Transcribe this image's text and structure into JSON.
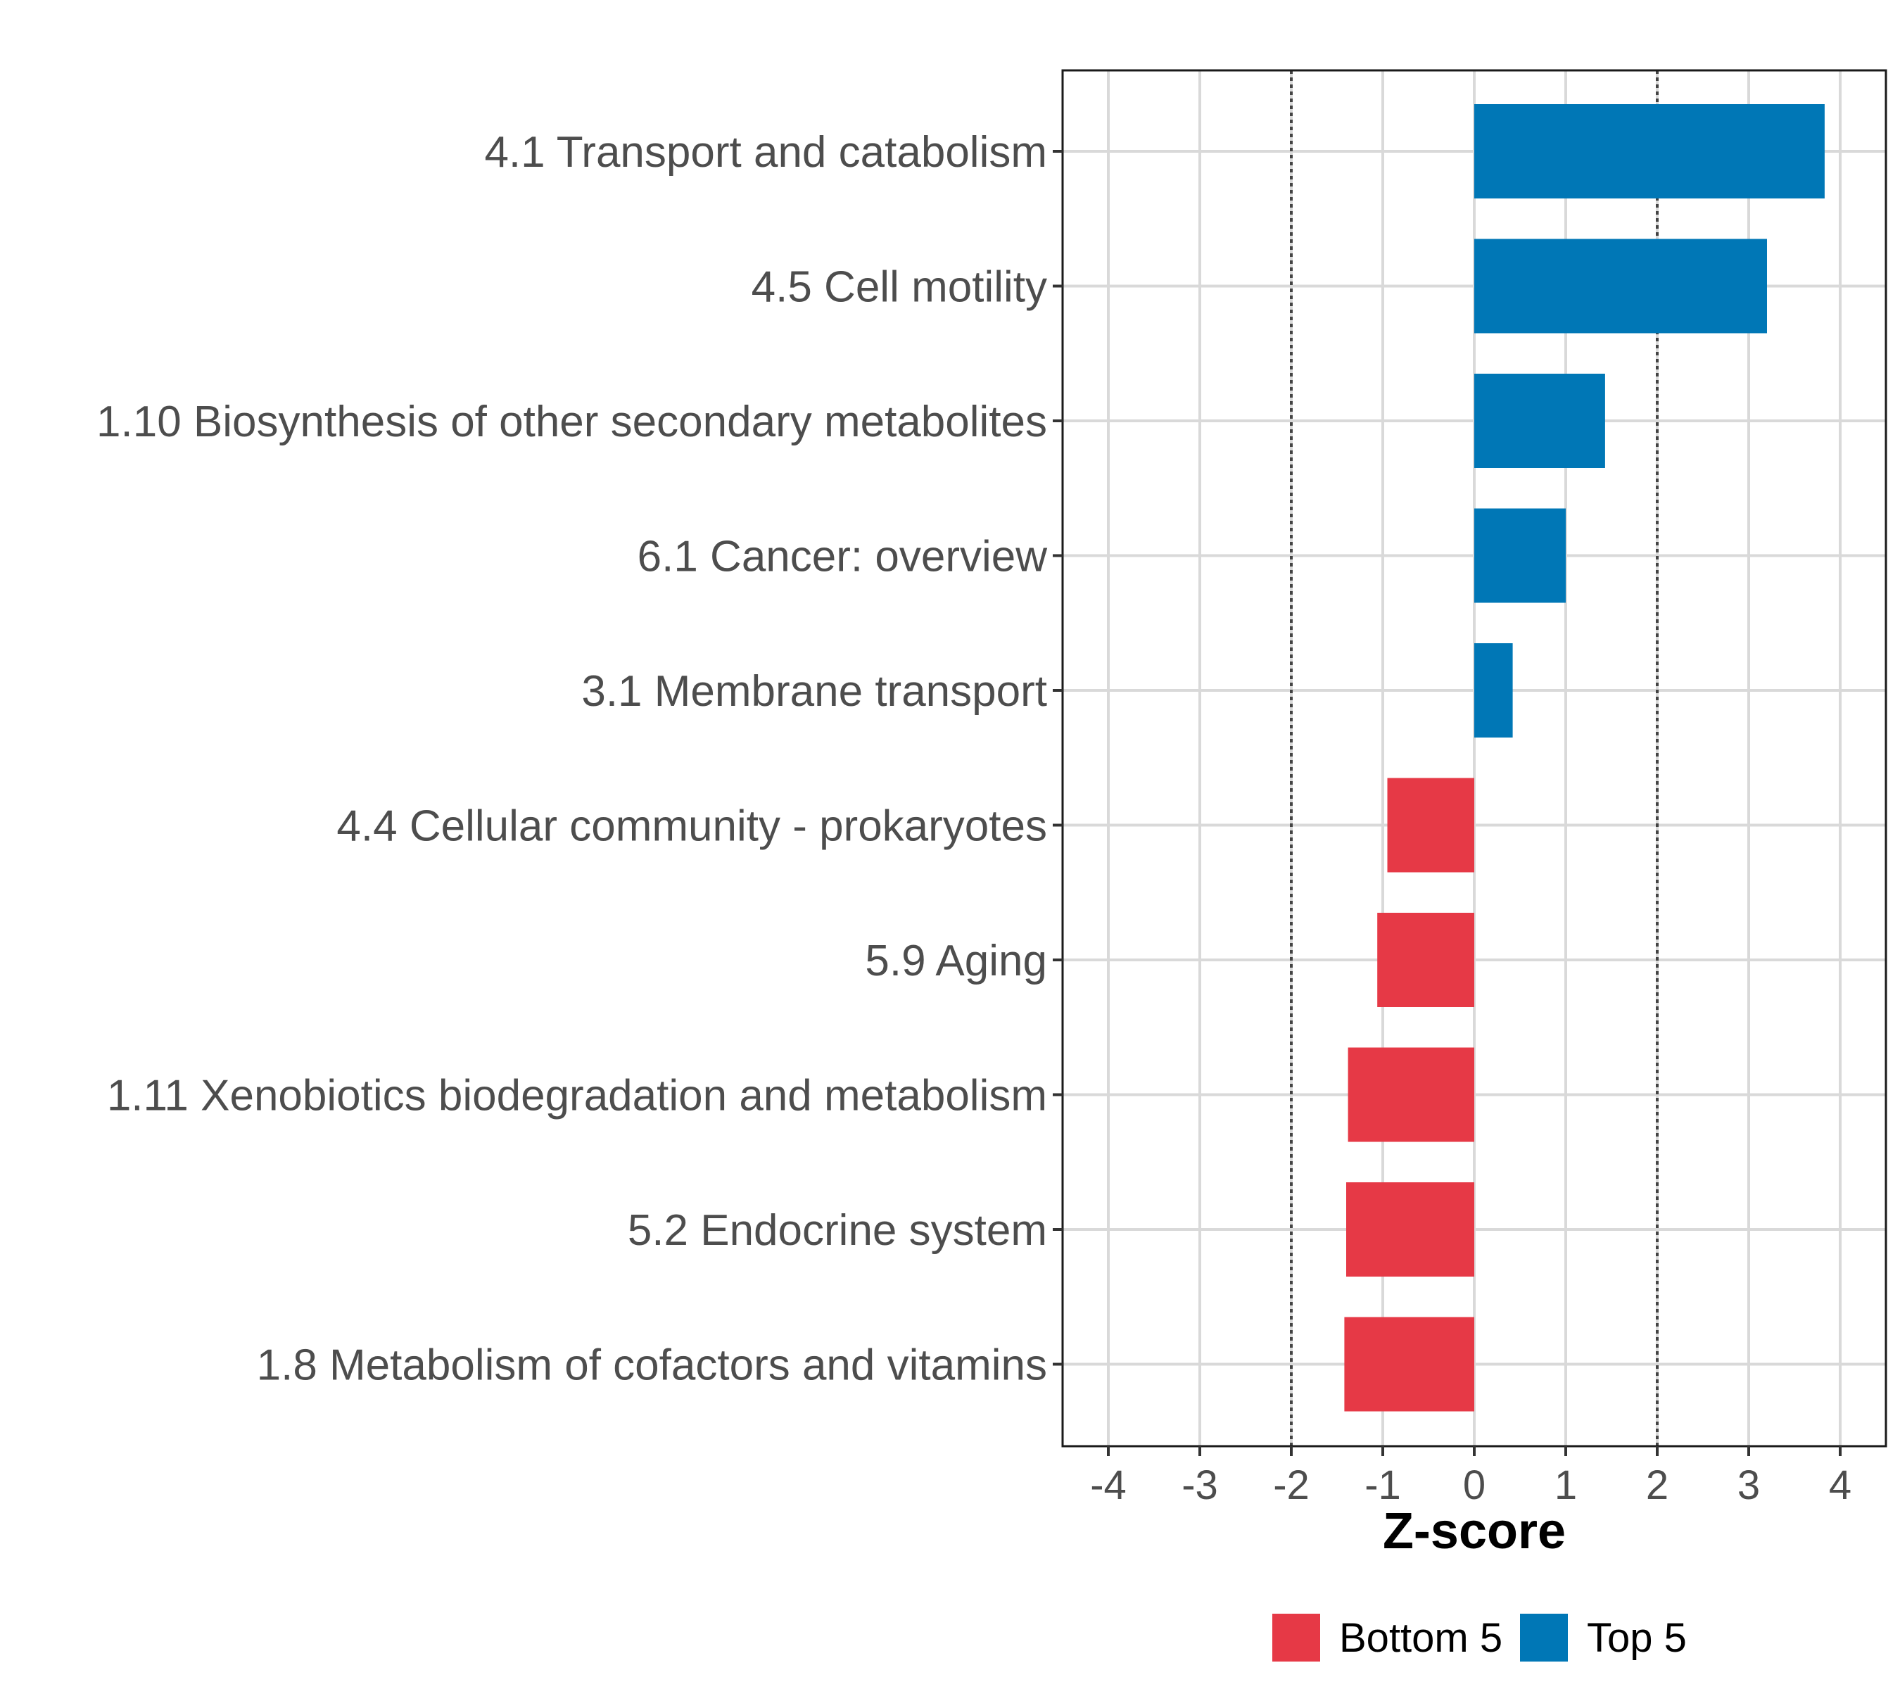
{
  "chart_data": {
    "type": "bar",
    "orientation": "horizontal",
    "categories": [
      "4.1 Transport and catabolism",
      "4.5 Cell motility",
      "1.10 Biosynthesis of other secondary metabolites",
      "6.1 Cancer: overview",
      "3.1 Membrane transport",
      "4.4 Cellular community - prokaryotes",
      "5.9 Aging",
      "1.11 Xenobiotics biodegradation and metabolism",
      "5.2 Endocrine system",
      "1.8 Metabolism of cofactors and vitamins"
    ],
    "values": [
      3.83,
      3.2,
      1.43,
      1.0,
      0.42,
      -0.95,
      -1.06,
      -1.38,
      -1.4,
      -1.42
    ],
    "groups": [
      "Top 5",
      "Top 5",
      "Top 5",
      "Top 5",
      "Top 5",
      "Bottom 5",
      "Bottom 5",
      "Bottom 5",
      "Bottom 5",
      "Bottom 5"
    ],
    "xlabel": "Z-score",
    "ylabel": "",
    "xlim": [
      -4.5,
      4.5
    ],
    "xticks": [
      -4,
      -3,
      -2,
      -1,
      0,
      1,
      2,
      3,
      4
    ],
    "reference_lines": [
      -2,
      2
    ],
    "grid": true,
    "legend": {
      "position": "bottom",
      "entries": [
        {
          "label": "Bottom 5",
          "color": "#e63946"
        },
        {
          "label": "Top 5",
          "color": "#0077b6"
        }
      ]
    }
  }
}
